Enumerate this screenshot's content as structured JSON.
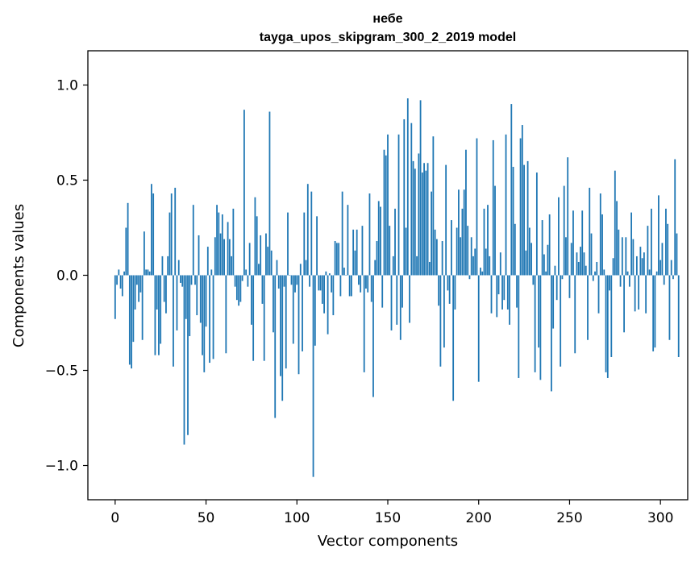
{
  "chart_data": {
    "type": "bar",
    "title_line1": "небе",
    "title_line2": "tayga_upos_skipgram_300_2_2019 model",
    "xlabel": "Vector components",
    "ylabel": "Components values",
    "xlim": [
      -15,
      315
    ],
    "ylim": [
      -1.18,
      1.18
    ],
    "xticks": [
      0,
      50,
      100,
      150,
      200,
      250,
      300
    ],
    "xtick_labels": [
      "0",
      "50",
      "100",
      "150",
      "200",
      "250",
      "300"
    ],
    "yticks": [
      -1.0,
      -0.5,
      0.0,
      0.5,
      1.0
    ],
    "ytick_labels": [
      "−1.0",
      "−0.5",
      "0.0",
      "0.5",
      "1.0"
    ],
    "bar_color": "#1f77b4",
    "grid": false,
    "values": [
      -0.23,
      -0.05,
      0.03,
      -0.07,
      -0.11,
      0.02,
      0.25,
      0.38,
      -0.47,
      -0.49,
      -0.35,
      -0.18,
      -0.05,
      -0.14,
      -0.09,
      -0.34,
      0.23,
      0.03,
      0.03,
      0.02,
      0.48,
      0.43,
      -0.42,
      -0.18,
      -0.42,
      -0.36,
      0.1,
      -0.14,
      -0.2,
      0.1,
      0.33,
      0.43,
      -0.48,
      0.46,
      -0.29,
      0.08,
      -0.04,
      -0.06,
      -0.89,
      -0.23,
      -0.84,
      -0.32,
      -0.05,
      0.37,
      -0.05,
      -0.21,
      0.21,
      -0.25,
      -0.42,
      -0.51,
      -0.27,
      0.15,
      -0.46,
      0.03,
      -0.44,
      0.2,
      0.37,
      0.33,
      0.22,
      0.32,
      0.19,
      -0.41,
      0.28,
      0.19,
      0.1,
      0.35,
      -0.06,
      -0.13,
      -0.16,
      -0.14,
      -0.03,
      0.87,
      0.03,
      -0.06,
      0.17,
      -0.26,
      -0.45,
      0.41,
      0.31,
      0.06,
      0.21,
      -0.15,
      -0.45,
      0.22,
      0.15,
      0.86,
      0.13,
      -0.3,
      -0.75,
      0.08,
      -0.07,
      -0.53,
      -0.66,
      -0.06,
      -0.49,
      0.33,
      0.0,
      -0.05,
      -0.36,
      -0.09,
      -0.05,
      -0.52,
      0.06,
      -0.4,
      0.33,
      0.08,
      0.48,
      -0.06,
      0.44,
      -1.06,
      -0.37,
      0.31,
      -0.08,
      -0.08,
      -0.15,
      -0.2,
      0.02,
      -0.31,
      0.01,
      -0.09,
      -0.21,
      0.18,
      0.17,
      0.17,
      -0.11,
      0.44,
      0.04,
      0.0,
      0.37,
      -0.11,
      -0.11,
      0.24,
      0.13,
      0.24,
      -0.05,
      -0.09,
      0.26,
      -0.51,
      -0.07,
      -0.09,
      0.43,
      -0.14,
      -0.64,
      0.08,
      0.18,
      0.39,
      0.36,
      -0.17,
      0.66,
      0.63,
      0.74,
      0.26,
      -0.29,
      0.1,
      0.35,
      -0.26,
      0.74,
      -0.34,
      -0.17,
      0.82,
      0.25,
      0.93,
      -0.25,
      0.8,
      0.6,
      0.56,
      0.1,
      0.64,
      0.92,
      0.54,
      0.59,
      0.55,
      0.59,
      0.07,
      0.44,
      0.73,
      0.24,
      0.19,
      -0.16,
      -0.48,
      0.18,
      -0.38,
      0.58,
      -0.08,
      -0.15,
      0.29,
      -0.66,
      -0.18,
      0.25,
      0.45,
      0.2,
      0.35,
      0.45,
      0.66,
      0.26,
      -0.02,
      0.2,
      0.1,
      0.14,
      0.72,
      -0.56,
      0.04,
      0.02,
      0.35,
      0.14,
      0.37,
      0.1,
      -0.2,
      0.71,
      0.47,
      -0.22,
      -0.1,
      0.12,
      -0.18,
      -0.13,
      0.74,
      -0.18,
      -0.26,
      0.9,
      0.57,
      0.27,
      -0.17,
      -0.54,
      0.72,
      0.79,
      0.58,
      0.13,
      0.6,
      0.25,
      0.17,
      -0.05,
      -0.51,
      0.54,
      -0.38,
      -0.55,
      0.29,
      0.11,
      0.02,
      0.16,
      0.32,
      -0.61,
      -0.28,
      0.05,
      -0.13,
      0.41,
      -0.48,
      -0.02,
      0.47,
      0.2,
      0.62,
      -0.12,
      0.17,
      0.34,
      -0.41,
      0.12,
      0.07,
      0.15,
      0.34,
      0.12,
      0.05,
      -0.34,
      0.46,
      0.22,
      -0.03,
      0.02,
      0.07,
      -0.2,
      0.43,
      0.32,
      0.03,
      -0.51,
      -0.54,
      -0.08,
      -0.43,
      0.09,
      0.55,
      0.39,
      0.24,
      -0.06,
      0.2,
      -0.3,
      0.2,
      0.02,
      -0.06,
      0.33,
      0.19,
      -0.19,
      0.1,
      -0.18,
      0.15,
      0.09,
      0.12,
      -0.2,
      0.26,
      0.03,
      0.35,
      -0.4,
      -0.38,
      0.02,
      0.42,
      0.08,
      0.17,
      -0.05,
      0.35,
      0.27,
      -0.34,
      0.08,
      -0.02,
      0.61,
      0.22,
      -0.43
    ]
  }
}
